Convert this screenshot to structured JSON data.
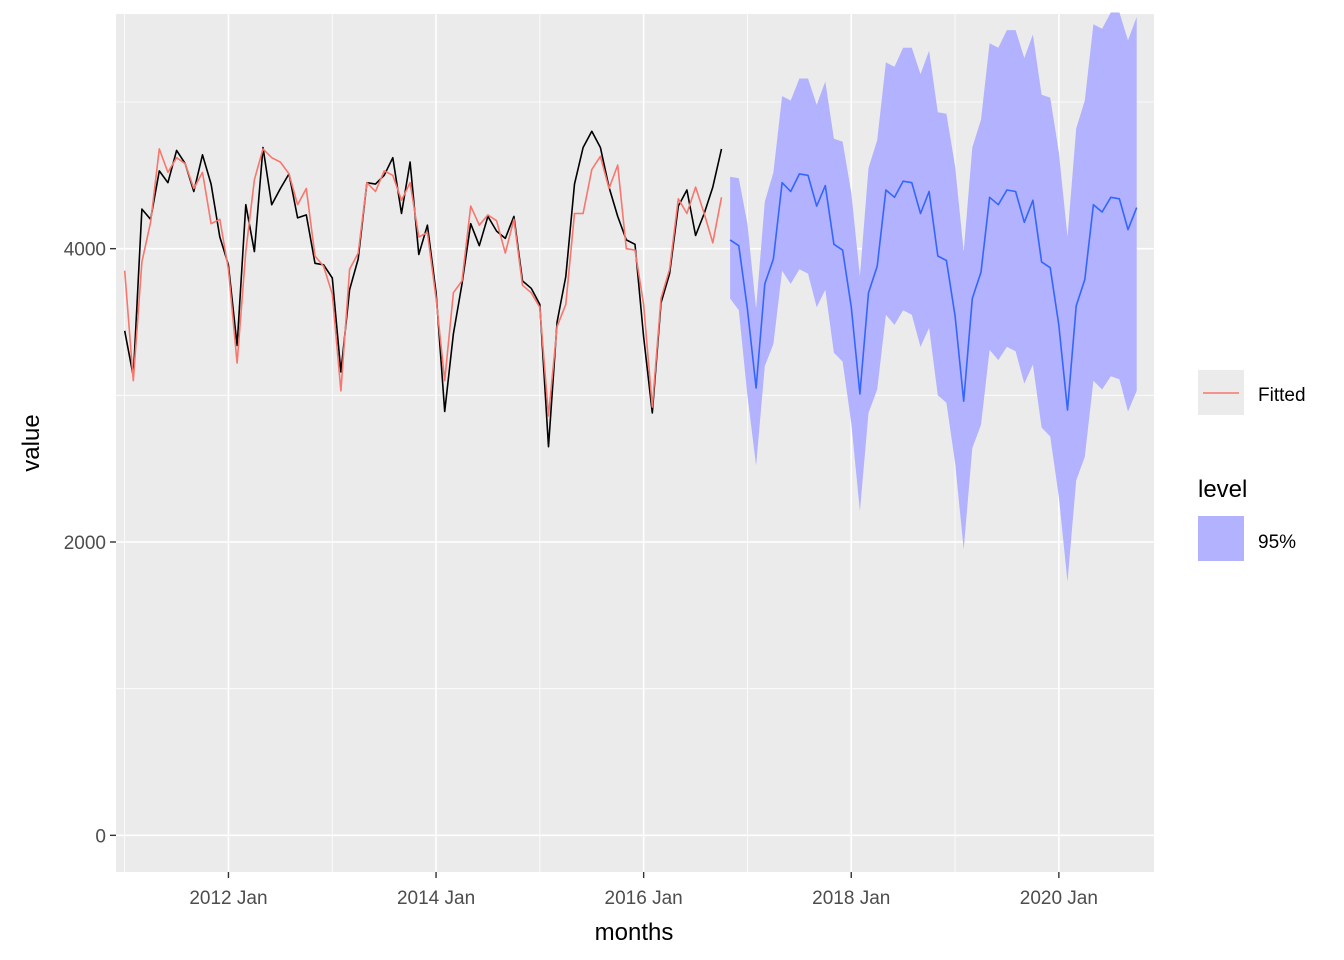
{
  "chart_data": {
    "type": "line",
    "xlabel": "months",
    "ylabel": "value",
    "xlim": [
      "2010-12",
      "2020-12"
    ],
    "ylim": [
      -250,
      5600
    ],
    "y_ticks": [
      0,
      2000,
      4000
    ],
    "y_tick_labels": [
      "0",
      "2000",
      "4000"
    ],
    "x_ticks": [
      "2012-01",
      "2014-01",
      "2016-01",
      "2018-01",
      "2020-01"
    ],
    "x_tick_labels": [
      "2012 Jan",
      "2014 Jan",
      "2016 Jan",
      "2018 Jan",
      "2020 Jan"
    ],
    "grid": true,
    "legend_position": "right",
    "colors": {
      "panel": "#ebebeb",
      "grid": "#ffffff",
      "actual": "#000000",
      "fitted": "#f8766d",
      "forecast": "#3366ff",
      "interval_fill": "#b2b2ff"
    },
    "legend": {
      "line_label": "Fitted",
      "level_title": "level",
      "level_label": "95%"
    },
    "series": [
      {
        "x_start": "2011-01",
        "values": [
          3440,
          3130,
          4270,
          4200,
          4530,
          4450,
          4670,
          4580,
          4390,
          4640,
          4440,
          4080,
          3890,
          3340,
          4300,
          3980,
          4690,
          4300,
          4410,
          4510,
          4210,
          4230,
          3900,
          3890,
          3800,
          3160,
          3720,
          3930,
          4450,
          4440,
          4500,
          4620,
          4240,
          4590,
          3960,
          4160,
          3700,
          2890,
          3420,
          3760,
          4170,
          4020,
          4220,
          4120,
          4070,
          4220,
          3780,
          3730,
          3620,
          2650,
          3500,
          3810,
          4440,
          4690,
          4800,
          4690,
          4420,
          4220,
          4060,
          4030,
          3400,
          2880,
          3630,
          3830,
          4290,
          4400,
          4090,
          4240,
          4420,
          4680
        ]
      },
      {
        "x_start": "2011-01",
        "values": [
          3850,
          3100,
          3910,
          4180,
          4680,
          4520,
          4620,
          4580,
          4410,
          4520,
          4170,
          4200,
          3860,
          3220,
          3980,
          4470,
          4680,
          4620,
          4590,
          4510,
          4300,
          4410,
          3950,
          3880,
          3690,
          3030,
          3860,
          3970,
          4450,
          4390,
          4530,
          4500,
          4330,
          4450,
          4080,
          4110,
          3660,
          3100,
          3700,
          3780,
          4290,
          4160,
          4230,
          4190,
          3970,
          4200,
          3750,
          3700,
          3600,
          2860,
          3470,
          3620,
          4240,
          4240,
          4540,
          4630,
          4410,
          4570,
          4000,
          3990,
          3620,
          2920,
          3660,
          3860,
          4340,
          4240,
          4420,
          4240,
          4040,
          4350
        ]
      },
      {
        "x_start": "2016-11",
        "values": [
          4060,
          4020,
          3590,
          3050,
          3760,
          3930,
          4450,
          4390,
          4510,
          4500,
          4290,
          4430,
          4030,
          3990,
          3600,
          3010,
          3700,
          3880,
          4400,
          4350,
          4460,
          4450,
          4240,
          4390,
          3950,
          3920,
          3540,
          2960,
          3660,
          3840,
          4350,
          4300,
          4400,
          4390,
          4180,
          4330,
          3910,
          3870,
          3480,
          2900,
          3610,
          3790,
          4300,
          4250,
          4350,
          4340,
          4130,
          4280
        ]
      }
    ],
    "interval_95": {
      "x_start": "2016-11",
      "lower": [
        3660,
        3580,
        3000,
        2520,
        3200,
        3350,
        3850,
        3760,
        3860,
        3830,
        3600,
        3720,
        3290,
        3230,
        2810,
        2210,
        2880,
        3040,
        3550,
        3480,
        3580,
        3550,
        3330,
        3460,
        3000,
        2950,
        2540,
        1950,
        2640,
        2800,
        3310,
        3240,
        3330,
        3300,
        3080,
        3210,
        2780,
        2720,
        2310,
        1730,
        2420,
        2580,
        3100,
        3040,
        3130,
        3110,
        2890,
        3030
      ],
      "upper": [
        4490,
        4480,
        4170,
        3590,
        4320,
        4520,
        5040,
        5010,
        5160,
        5160,
        4980,
        5140,
        4750,
        4730,
        4380,
        3810,
        4550,
        4740,
        5270,
        5240,
        5370,
        5370,
        5190,
        5350,
        4930,
        4920,
        4560,
        3980,
        4690,
        4880,
        5400,
        5370,
        5490,
        5490,
        5300,
        5460,
        5050,
        5030,
        4660,
        4080,
        4820,
        5010,
        5530,
        5500,
        5610,
        5610,
        5420,
        5580
      ]
    }
  }
}
